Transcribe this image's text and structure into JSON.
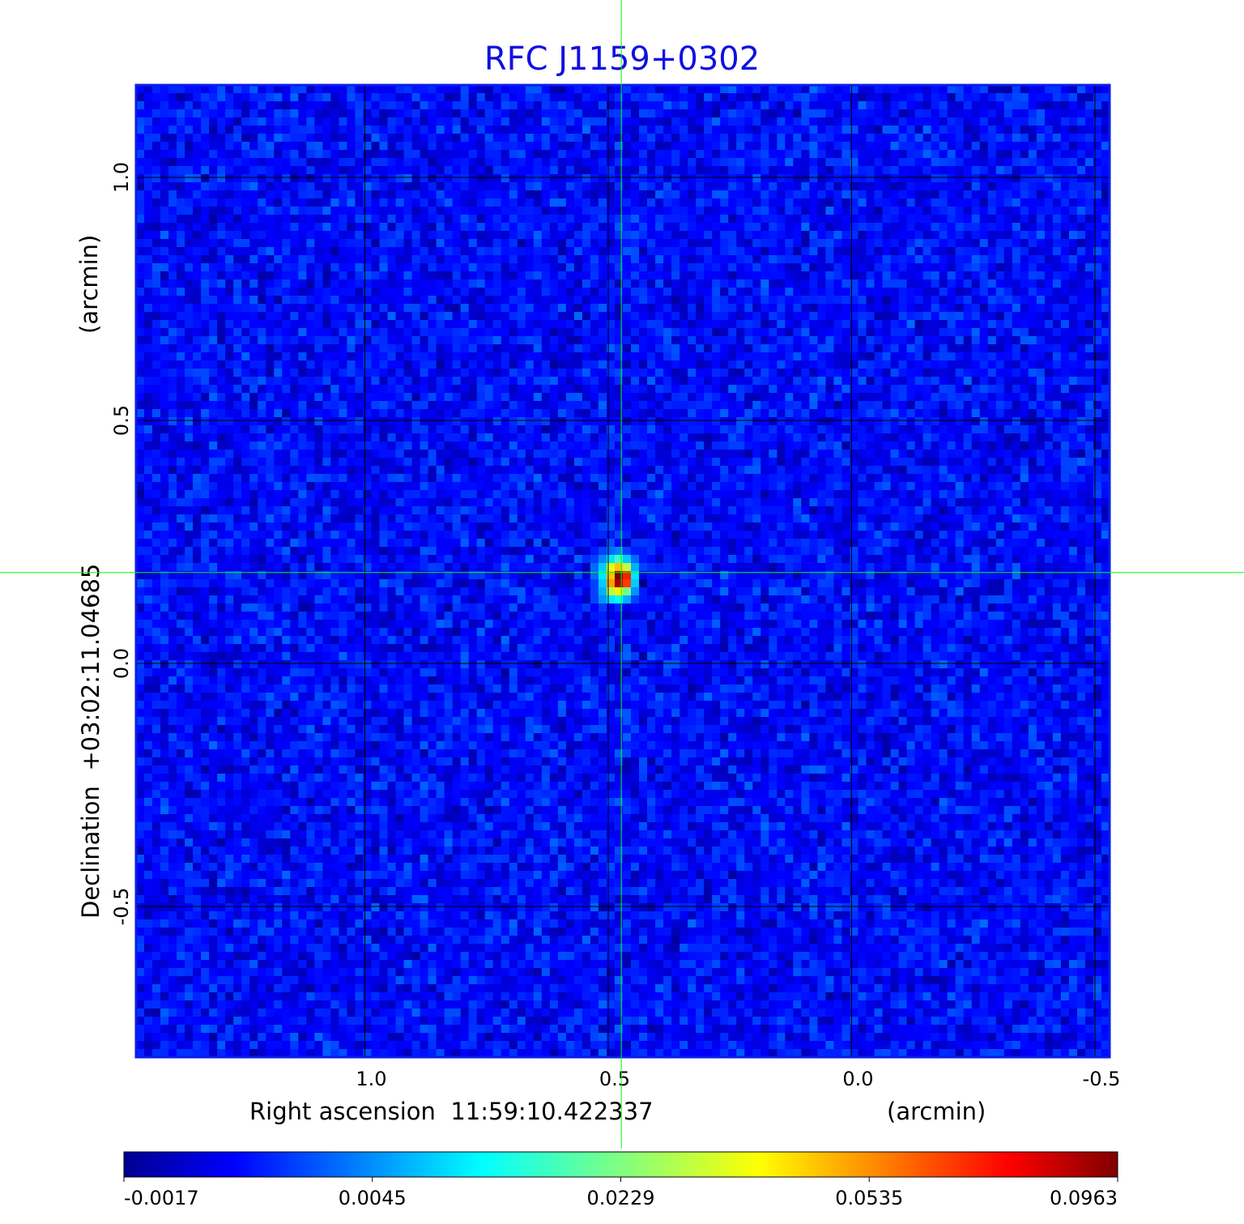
{
  "chart_data": {
    "type": "heatmap",
    "title": "RFC J1159+0302",
    "xlabel": "Right ascension  11:59:10.422337",
    "xunit": "(arcmin)",
    "ylabel": "Declination  +03:02:11.04685",
    "yunit": "(arcmin)",
    "xlim": [
      1.47,
      -0.53
    ],
    "ylim": [
      -0.81,
      1.19
    ],
    "x_ticks": [
      "1.0",
      "0.5",
      "0.0",
      "-0.5"
    ],
    "x_tick_values": [
      1.0,
      0.5,
      0.0,
      -0.5
    ],
    "y_ticks": [
      "1.0",
      "0.5",
      "0.0",
      "-0.5"
    ],
    "y_tick_values": [
      1.0,
      0.5,
      0.0,
      -0.5
    ],
    "grid": true,
    "crosshair": {
      "x": 0.473,
      "y": 0.187,
      "color": "#00ff00"
    },
    "colormap": "jet",
    "colorbar": {
      "orientation": "horizontal",
      "position": "bottom",
      "tick_labels": [
        "-0.0017",
        "0.0045",
        "0.0229",
        "0.0535",
        "0.0963"
      ],
      "tick_values": [
        -0.0017,
        0.0045,
        0.0229,
        0.0535,
        0.0963
      ]
    },
    "background_level": [
      -0.001,
      0.004
    ],
    "source_peak": {
      "x": 0.473,
      "y": 0.187,
      "peak": 0.0963,
      "pixels": [
        [
          0.002,
          0.003,
          0.004,
          0.005,
          0.003,
          0.002,
          0.002
        ],
        [
          0.003,
          0.005,
          0.012,
          0.018,
          0.01,
          0.004,
          0.002
        ],
        [
          0.004,
          0.01,
          0.035,
          0.045,
          0.03,
          0.008,
          0.003
        ],
        [
          0.004,
          0.012,
          0.045,
          0.0963,
          0.07,
          0.012,
          0.001
        ],
        [
          0.003,
          0.01,
          0.05,
          0.09,
          0.065,
          0.01,
          -0.0017
        ],
        [
          0.003,
          0.008,
          0.03,
          0.04,
          0.022,
          0.006,
          0.002
        ],
        [
          0.003,
          0.006,
          0.012,
          0.014,
          0.008,
          0.003,
          0.002
        ]
      ]
    }
  }
}
